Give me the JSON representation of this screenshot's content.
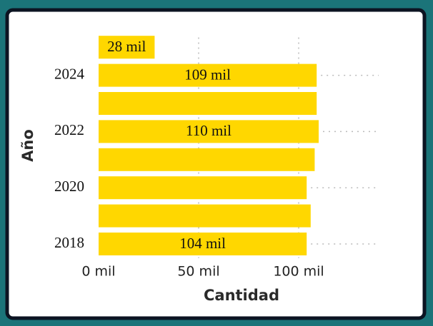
{
  "chart_data": {
    "type": "hbar",
    "x_label": "Cantidad",
    "y_label": "Año",
    "categories": [
      null,
      "2024",
      null,
      "2022",
      null,
      "2020",
      null,
      "2018"
    ],
    "values": [
      28,
      109,
      109,
      110,
      108,
      104,
      106,
      104
    ],
    "value_labels": [
      "28 mil",
      "109 mil",
      null,
      "110 mil",
      null,
      null,
      null,
      "104 mil"
    ],
    "color": "#ffd700",
    "xlim": [
      0,
      140
    ],
    "xticks": [
      {
        "value": 0,
        "label": "0 mil"
      },
      {
        "value": 50,
        "label": "50 mil"
      },
      {
        "value": 100,
        "label": "100 mil"
      }
    ],
    "grid": true
  }
}
